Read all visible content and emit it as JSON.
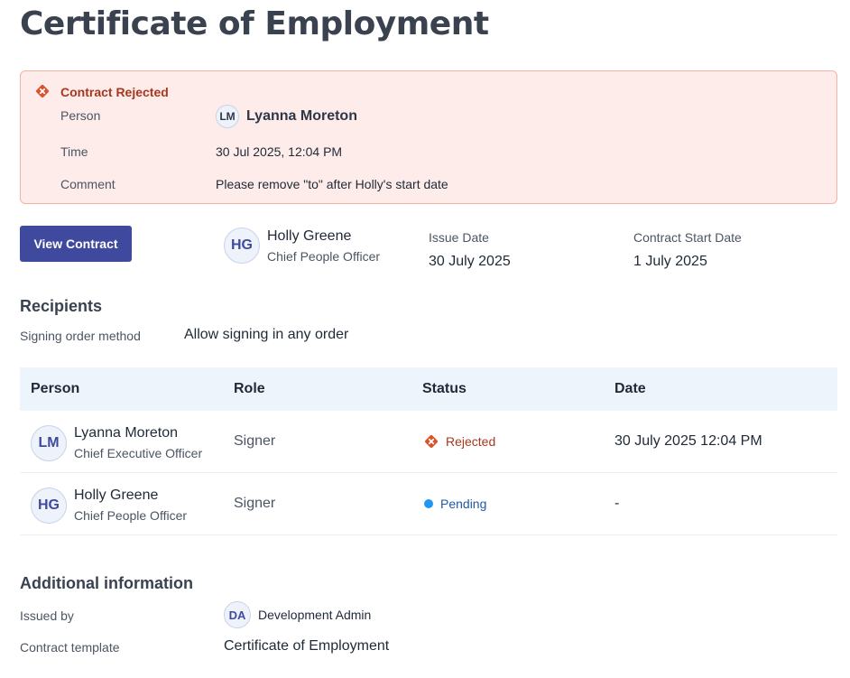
{
  "page": {
    "title": "Certificate of Employment"
  },
  "alert": {
    "title": "Contract Rejected",
    "person_label": "Person",
    "person_initials": "LM",
    "person_name": "Lyanna Moreton",
    "time_label": "Time",
    "time_value": "30 Jul 2025, 12:04 PM",
    "comment_label": "Comment",
    "comment_value": "Please remove \"to\" after Holly's start date",
    "icon": "error-x-icon",
    "color": "#d9532c"
  },
  "header": {
    "view_contract_label": "View Contract",
    "issuer_initials": "HG",
    "issuer_name": "Holly Greene",
    "issuer_role": "Chief People Officer",
    "issue_date_label": "Issue Date",
    "issue_date_value": "30 July 2025",
    "start_date_label": "Contract Start Date",
    "start_date_value": "1 July 2025"
  },
  "recipients": {
    "title": "Recipients",
    "signing_order_label": "Signing order method",
    "signing_order_value": "Allow signing in any order",
    "columns": [
      "Person",
      "Role",
      "Status",
      "Date"
    ],
    "rows": [
      {
        "initials": "LM",
        "name": "Lyanna Moreton",
        "title": "Chief Executive Officer",
        "role": "Signer",
        "status": "Rejected",
        "status_icon": "error-x-icon",
        "date": "30 July 2025 12:04 PM"
      },
      {
        "initials": "HG",
        "name": "Holly Greene",
        "title": "Chief People Officer",
        "role": "Signer",
        "status": "Pending",
        "status_icon": "blue-dot-icon",
        "date": "-"
      }
    ]
  },
  "additional": {
    "title": "Additional information",
    "issued_by_label": "Issued by",
    "issued_by_initials": "DA",
    "issued_by_name": "Development Admin",
    "template_label": "Contract template",
    "template_value": "Certificate of Employment"
  },
  "colors": {
    "primary": "#3f4a9f",
    "alert_bg": "#fdecea",
    "alert_border": "#f4b3a8",
    "header_bg": "#eef4fc"
  }
}
